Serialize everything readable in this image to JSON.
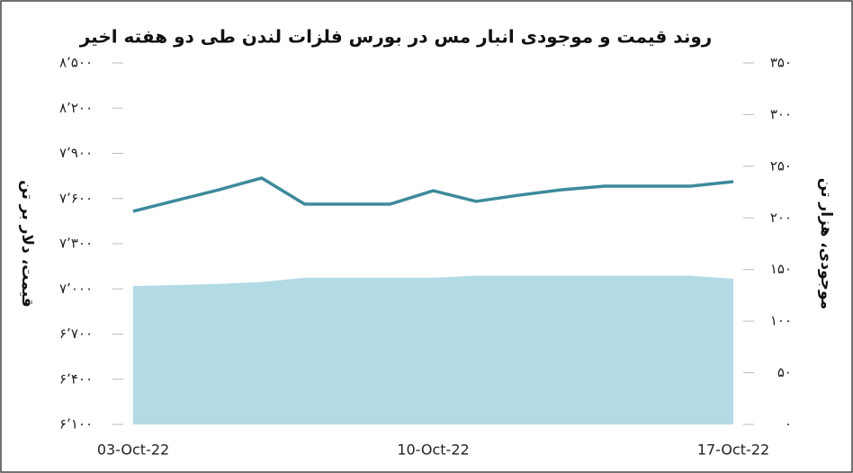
{
  "chart_data": {
    "type": "line_area",
    "title": "روند قیمت و موجودی انبار مس در بورس فلزات لندن طی دو هفته اخیر",
    "y_label": "قیمت، دلار بر تن",
    "y2_label": "موجودی، هزار تن",
    "categories": [
      "03-Oct-22",
      null,
      null,
      null,
      null,
      null,
      null,
      "10-Oct-22",
      null,
      null,
      null,
      null,
      null,
      null,
      "17-Oct-22"
    ],
    "series": [
      {
        "name": "قیمت",
        "color": "#3d8a9b",
        "axis": "y",
        "kind": "line",
        "values": [
          7515,
          7587,
          7658,
          7736,
          7563,
          7563,
          7563,
          7652,
          7581,
          7622,
          7658,
          7682,
          7682,
          7682,
          7712
        ]
      },
      {
        "name": "موجودی",
        "color": "#b3dbe5",
        "axis": "y2",
        "kind": "area",
        "values": [
          134,
          135,
          136,
          138,
          142,
          142,
          142,
          142,
          144,
          144,
          144,
          144,
          144,
          144,
          141
        ]
      }
    ],
    "ylim": [
      6100,
      8500
    ],
    "yticks": [
      {
        "value": 6100,
        "label": "۶٬۱۰۰"
      },
      {
        "value": 6400,
        "label": "۶٬۴۰۰"
      },
      {
        "value": 6700,
        "label": "۶٬۷۰۰"
      },
      {
        "value": 7000,
        "label": "۷٬۰۰۰"
      },
      {
        "value": 7300,
        "label": "۷٬۳۰۰"
      },
      {
        "value": 7600,
        "label": "۷٬۶۰۰"
      },
      {
        "value": 7900,
        "label": "۷٬۹۰۰"
      },
      {
        "value": 8200,
        "label": "۸٬۲۰۰"
      },
      {
        "value": 8500,
        "label": "۸٬۵۰۰"
      }
    ],
    "y2lim": [
      0,
      350
    ],
    "y2ticks": [
      {
        "value": 0,
        "label": "۰"
      },
      {
        "value": 50,
        "label": "۵۰"
      },
      {
        "value": 100,
        "label": "۱۰۰"
      },
      {
        "value": 150,
        "label": "۱۵۰"
      },
      {
        "value": 200,
        "label": "۲۰۰"
      },
      {
        "value": 250,
        "label": "۲۵۰"
      },
      {
        "value": 300,
        "label": "۳۰۰"
      },
      {
        "value": 350,
        "label": "۳۵۰"
      }
    ]
  }
}
